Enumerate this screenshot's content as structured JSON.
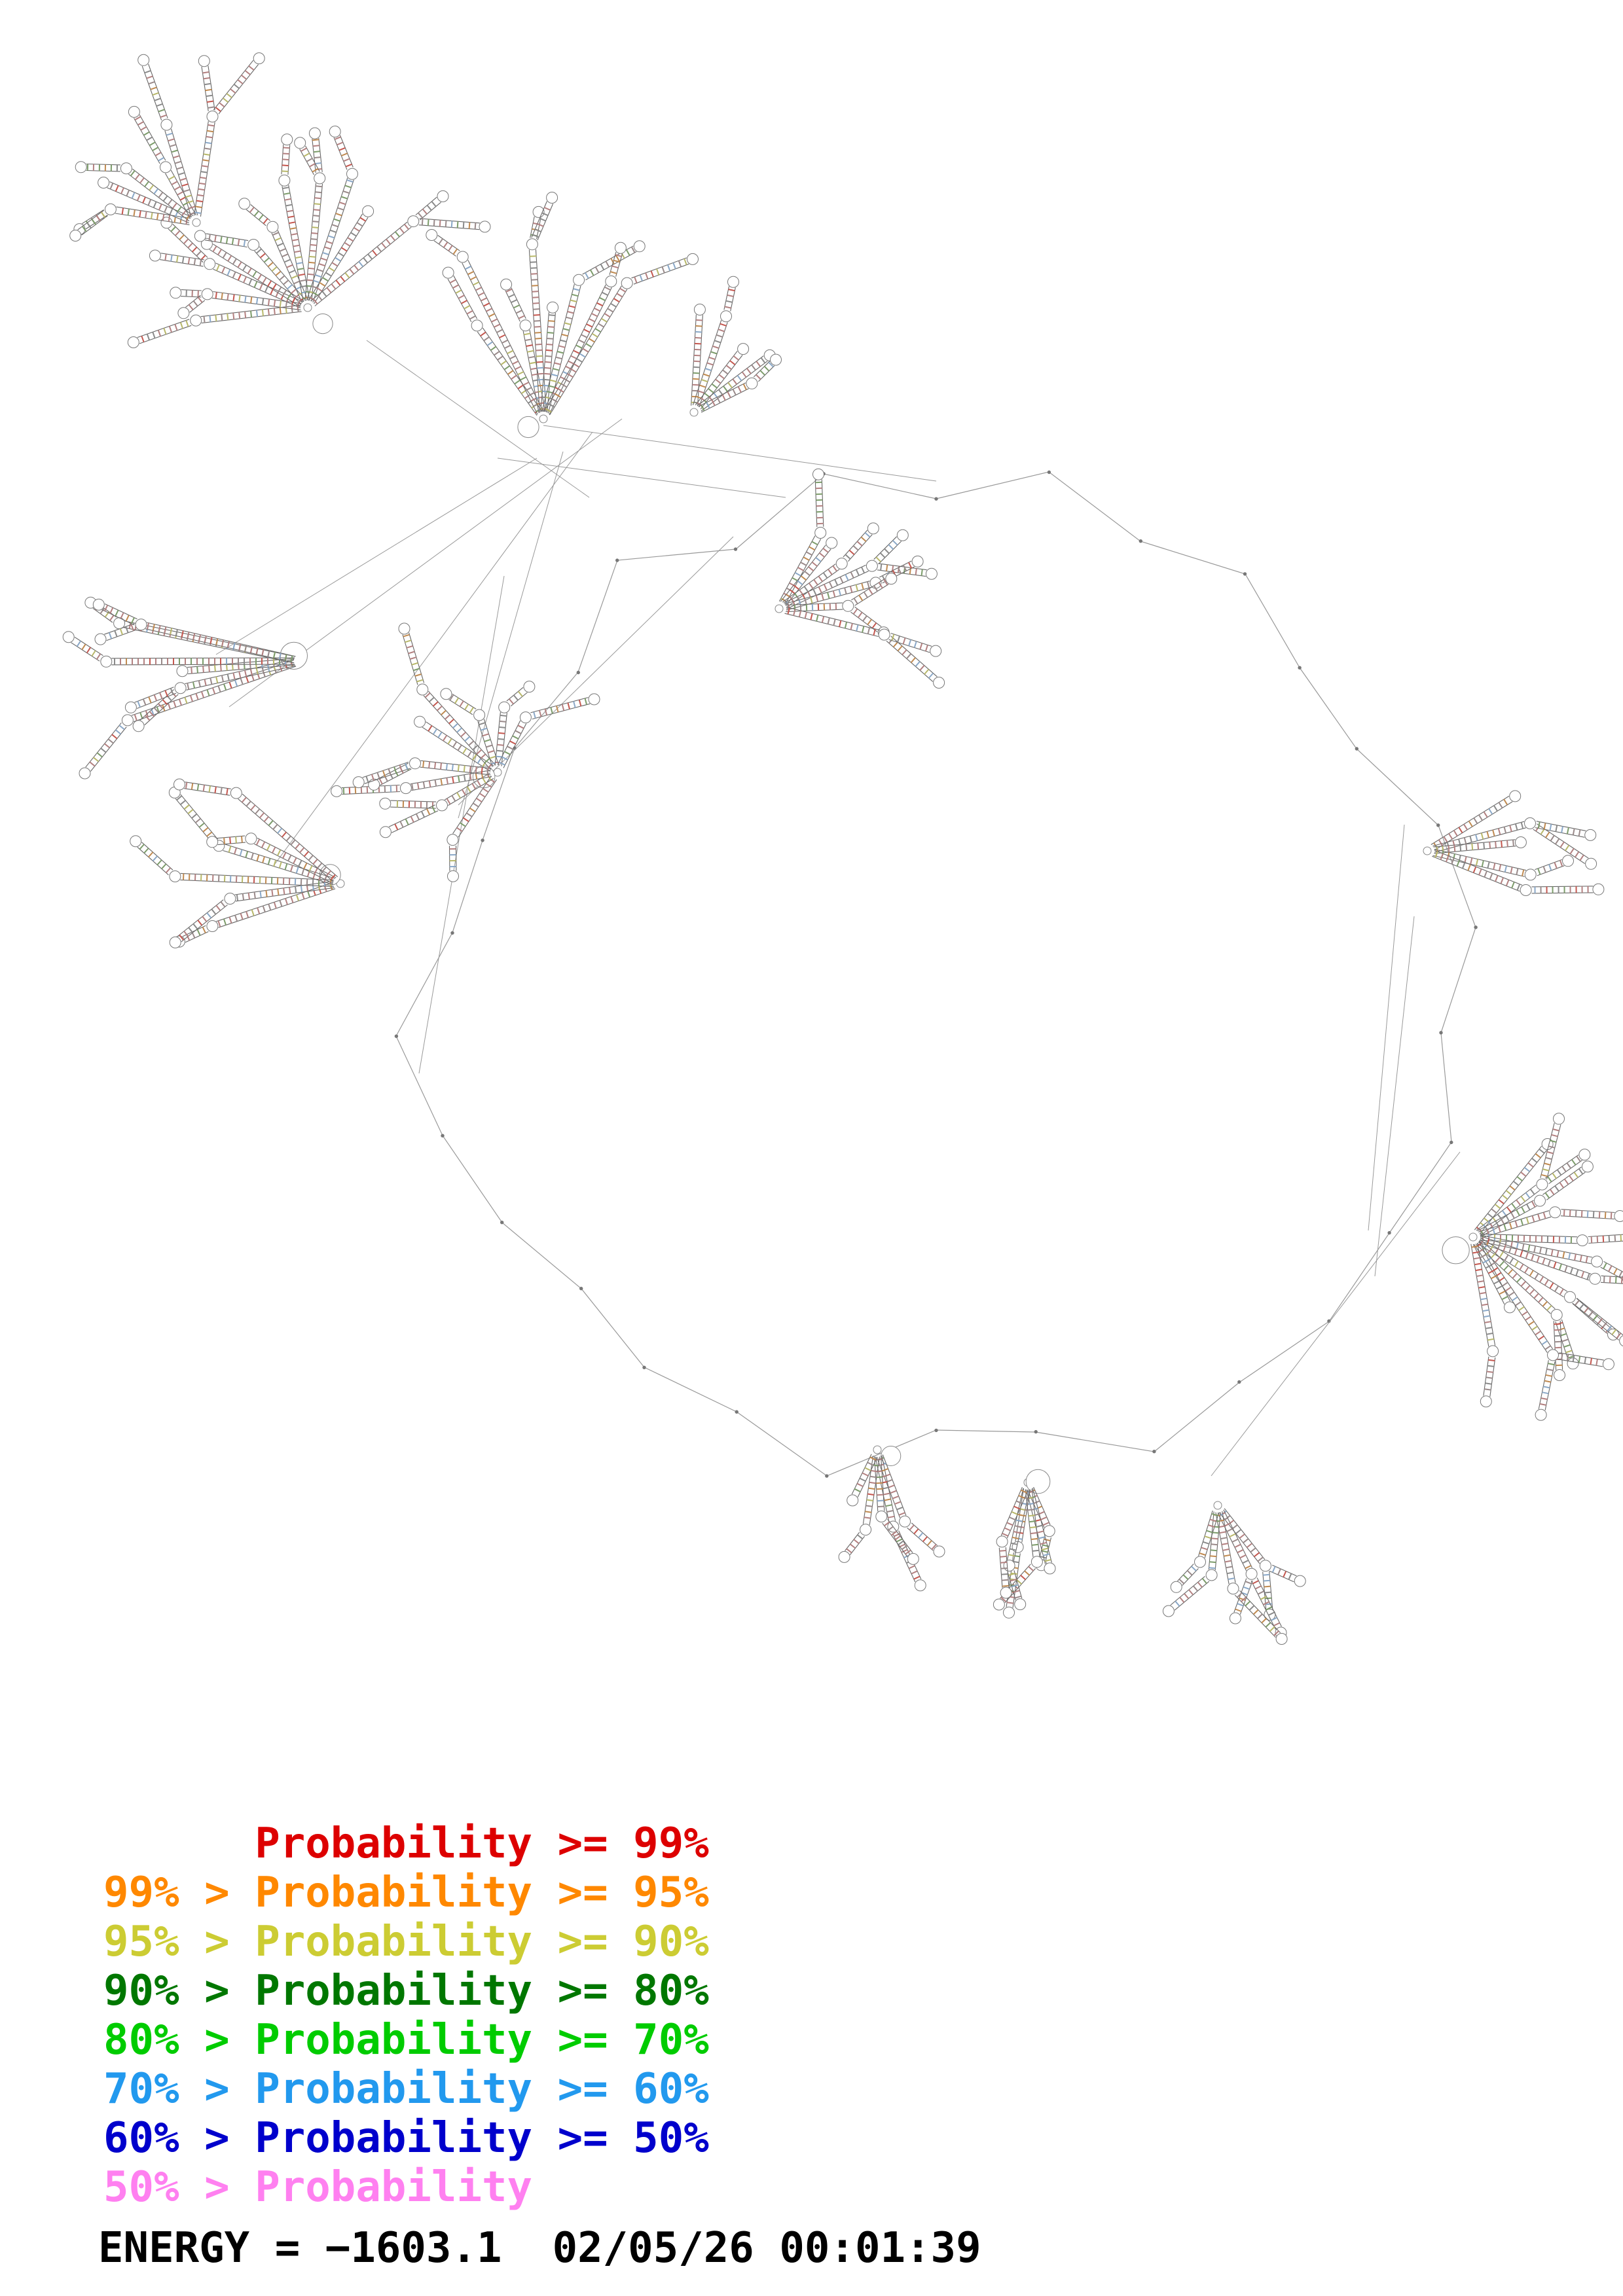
{
  "diagram": {
    "kind": "rna-secondary-structure-plot",
    "backbone_color": "#999999",
    "stem_rail_color": "#666666",
    "loop_outline_color": "#777777"
  },
  "legend": {
    "entries": [
      {
        "text": "      Probability >= 99%",
        "color": "#dd0000"
      },
      {
        "text": "99% > Probability >= 95%",
        "color": "#ff8800"
      },
      {
        "text": "95% > Probability >= 90%",
        "color": "#cccc33"
      },
      {
        "text": "90% > Probability >= 80%",
        "color": "#007700"
      },
      {
        "text": "80% > Probability >= 70%",
        "color": "#00cc00"
      },
      {
        "text": "70% > Probability >= 60%",
        "color": "#2299ee"
      },
      {
        "text": "60% > Probability >= 50%",
        "color": "#0000cc"
      },
      {
        "text": "50% > Probability",
        "color": "#ff80f0"
      }
    ]
  },
  "footer": {
    "energy_text": "ENERGY = −1603.1  02/05/26 00:01:39"
  }
}
